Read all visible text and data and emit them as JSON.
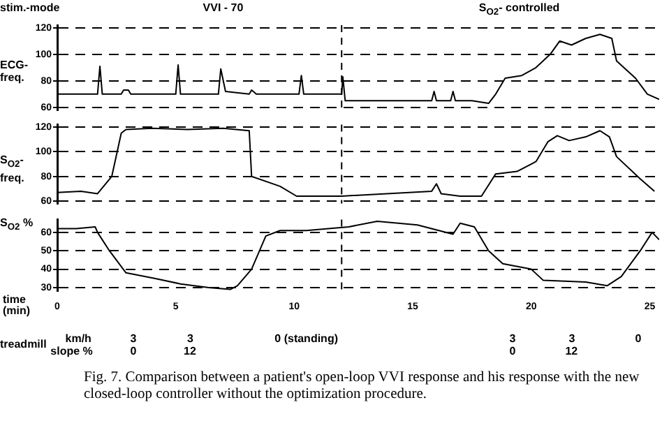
{
  "chart_data": [
    {
      "type": "line",
      "ylabel": "ECG-freq.",
      "xlim": [
        0,
        25.4
      ],
      "ylim": [
        58,
        122
      ],
      "yticks": [
        60,
        80,
        100,
        120
      ],
      "grid": "y",
      "legend": false,
      "marker": "none",
      "line_style": "solid",
      "tick_labels": "y",
      "annotations": [
        "stim.-mode",
        "VVI - 70",
        "S$_{O2}$- controlled"
      ],
      "ref_lines": [
        {
          "axis": "x",
          "value": 12,
          "color": "#000000",
          "line_style": "dashed"
        }
      ],
      "series": [
        {
          "color": "#000000",
          "x": [
            0,
            1.7,
            1.8,
            1.9,
            2.7,
            2.8,
            3.0,
            3.1,
            5.0,
            5.1,
            5.2,
            6.8,
            6.9,
            7.1,
            8.1,
            8.2,
            8.4,
            10.2,
            10.3,
            10.4,
            12.0,
            12.05,
            12.15,
            15.8,
            15.9,
            16.0,
            16.6,
            16.7,
            16.8,
            17.5,
            18.2,
            18.5,
            18.9,
            19.6,
            20.2,
            20.8,
            21.2,
            21.7,
            22.3,
            22.9,
            23.4,
            23.6,
            24.4,
            24.9,
            25.4
          ],
          "values": [
            70,
            70,
            91,
            70,
            70,
            73,
            73,
            70,
            70,
            92,
            70,
            70,
            89,
            72,
            70,
            73,
            70,
            70,
            84,
            70,
            70,
            83,
            65,
            65,
            72,
            65,
            65,
            72,
            65,
            65,
            63,
            70,
            82,
            84,
            90,
            100,
            110,
            107,
            112,
            115,
            112,
            95,
            82,
            70,
            66
          ]
        }
      ]
    },
    {
      "type": "line",
      "ylabel": "S$_{O2}$-freq.",
      "xlim": [
        0,
        25.4
      ],
      "ylim": [
        58,
        122
      ],
      "yticks": [
        60,
        80,
        100,
        120
      ],
      "grid": "y",
      "legend": false,
      "marker": "none",
      "line_style": "solid",
      "tick_labels": "y",
      "ref_lines": [
        {
          "axis": "x",
          "value": 12,
          "color": "#000000",
          "line_style": "dashed"
        }
      ],
      "series": [
        {
          "color": "#000000",
          "x": [
            0,
            1.0,
            1.7,
            2.3,
            2.7,
            2.9,
            4.0,
            5.5,
            7.0,
            8.1,
            8.2,
            9.4,
            10.1,
            12.0,
            15.8,
            16.0,
            16.2,
            17.0,
            17.9,
            18.5,
            19.4,
            20.2,
            20.7,
            21.1,
            21.6,
            22.3,
            22.9,
            23.3,
            23.6,
            24.6,
            25.2
          ],
          "values": [
            67,
            68,
            66,
            80,
            115,
            118,
            119,
            118,
            119,
            117,
            80,
            72,
            64,
            64,
            68,
            74,
            66,
            64,
            64,
            82,
            84,
            92,
            108,
            113,
            109,
            112,
            117,
            112,
            96,
            78,
            68
          ]
        }
      ]
    },
    {
      "type": "line",
      "ylabel": "S$_{O2}$ %",
      "xlabel": "time (min)",
      "xlim": [
        0,
        25.4
      ],
      "xticks": [
        0,
        5,
        10,
        15,
        20,
        25
      ],
      "ylim": [
        28,
        67
      ],
      "yticks": [
        30,
        40,
        50,
        60
      ],
      "grid": "y",
      "legend": false,
      "marker": "none",
      "line_style": "solid",
      "ref_lines": [
        {
          "axis": "x",
          "value": 12,
          "color": "#000000",
          "line_style": "dashed"
        }
      ],
      "series": [
        {
          "color": "#000000",
          "x": [
            0,
            0.8,
            1.6,
            1.7,
            2.2,
            2.9,
            4.1,
            5.2,
            6.4,
            7.3,
            7.6,
            8.2,
            8.8,
            9.4,
            10.5,
            12.3,
            13.5,
            15.2,
            16.7,
            17.0,
            17.6,
            18.2,
            18.8,
            20.0,
            20.5,
            22.3,
            23.2,
            23.8,
            24.6,
            25.1,
            25.4
          ],
          "values": [
            62,
            62,
            63,
            60,
            50,
            38,
            35,
            32,
            30,
            29,
            31,
            40,
            58,
            61,
            61,
            63,
            66,
            64,
            59,
            65,
            63,
            50,
            43,
            40,
            34,
            33,
            31,
            36,
            50,
            60,
            56
          ]
        }
      ]
    },
    {
      "type": "other",
      "annotations": [
        "treadmill",
        "km/h",
        "slope %",
        "3",
        "0",
        "3",
        "12",
        "0 (standing)",
        "3",
        "0",
        "3",
        "12",
        "0",
        "Fig. 7. Comparison between a patient's open-loop VVI response and his response with the new closed-loop controller without the optimization procedure."
      ]
    }
  ]
}
